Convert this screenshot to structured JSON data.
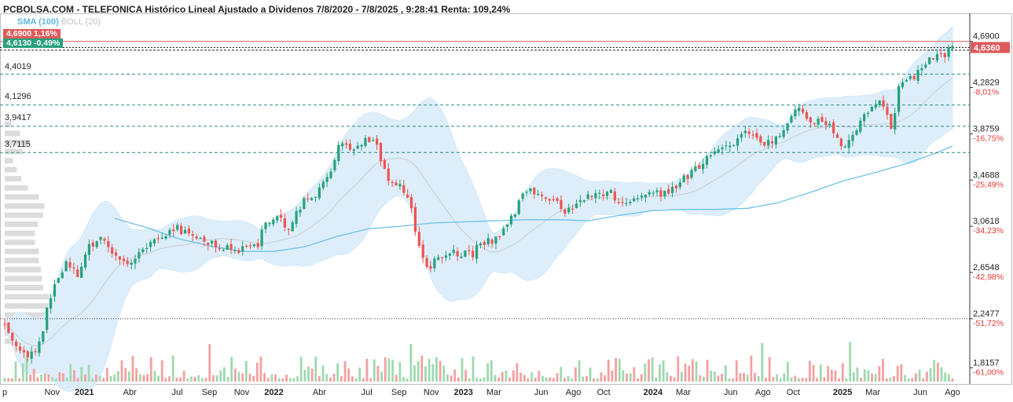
{
  "header": {
    "title": "PCBOLSA.COM - TELEFONICA Histórico Lineal Ajustado a Dividenos 7/8/2020 - 7/8/2025 , 9:28:41 Renta: 109,24%",
    "legend_sma": "SMA (100)",
    "legend_boll": "BOLL (20)"
  },
  "tags": {
    "high": "4,6900  1,16%",
    "low": "4,6130  -0,49%",
    "last": "4,6360"
  },
  "levels": [
    "4,4019",
    "4,1296",
    "3,9417",
    "3,7115"
  ],
  "colors": {
    "up": "#26a17b",
    "down": "#ef5350",
    "sma": "#6ec1e8",
    "band_fill": "#ddeefa",
    "band_mid": "#c9cdd1",
    "level_line": "#2c8a80",
    "support_line": "#333333",
    "high_line": "#e05a5a",
    "volume_profile": "#dcdcdc",
    "pct_text": "#e53935"
  },
  "chart_data": {
    "type": "candlestick",
    "title": "PCBOLSA.COM - TELEFONICA Histórico Lineal Ajustado a Dividenos 7/8/2020 - 7/8/2025 , 9:28:41 Renta: 109,24%",
    "x_ticks": [
      {
        "label": "p",
        "bold": false,
        "t": 0.0
      },
      {
        "label": "Nov",
        "bold": false,
        "t": 0.25
      },
      {
        "label": "2021",
        "bold": true,
        "t": 0.42
      },
      {
        "label": "Abr",
        "bold": false,
        "t": 0.66
      },
      {
        "label": "Jul",
        "bold": false,
        "t": 0.91
      },
      {
        "label": "Sep",
        "bold": false,
        "t": 1.08
      },
      {
        "label": "Nov",
        "bold": false,
        "t": 1.25
      },
      {
        "label": "2022",
        "bold": true,
        "t": 1.42
      },
      {
        "label": "Abr",
        "bold": false,
        "t": 1.66
      },
      {
        "label": "Jul",
        "bold": false,
        "t": 1.91
      },
      {
        "label": "Sep",
        "bold": false,
        "t": 2.08
      },
      {
        "label": "Nov",
        "bold": false,
        "t": 2.25
      },
      {
        "label": "2023",
        "bold": true,
        "t": 2.42
      },
      {
        "label": "Mar",
        "bold": false,
        "t": 2.58
      },
      {
        "label": "Jun",
        "bold": false,
        "t": 2.83
      },
      {
        "label": "Ago",
        "bold": false,
        "t": 3.0
      },
      {
        "label": "Oct",
        "bold": false,
        "t": 3.16
      },
      {
        "label": "2024",
        "bold": true,
        "t": 3.42
      },
      {
        "label": "Mar",
        "bold": false,
        "t": 3.58
      },
      {
        "label": "Jun",
        "bold": false,
        "t": 3.83
      },
      {
        "label": "Ago",
        "bold": false,
        "t": 4.0
      },
      {
        "label": "Oct",
        "bold": false,
        "t": 4.16
      },
      {
        "label": "2025",
        "bold": true,
        "t": 4.42
      },
      {
        "label": "Mar",
        "bold": false,
        "t": 4.58
      },
      {
        "label": "Jun",
        "bold": false,
        "t": 4.83
      },
      {
        "label": "Ago",
        "bold": false,
        "t": 5.0
      }
    ],
    "y_ticks": [
      {
        "value": 4.69,
        "label": "4,6900",
        "pct": ""
      },
      {
        "value": 4.2829,
        "label": "4,2829",
        "pct": "-8,01%"
      },
      {
        "value": 3.8759,
        "label": "3,8759",
        "pct": "-16,75%"
      },
      {
        "value": 3.4688,
        "label": "3,4688",
        "pct": "-25,49%"
      },
      {
        "value": 3.0618,
        "label": "3,0618",
        "pct": "-34,23%"
      },
      {
        "value": 2.6548,
        "label": "2,6548",
        "pct": "-42,98%"
      },
      {
        "value": 2.2477,
        "label": "2,2477",
        "pct": "-51,72%"
      },
      {
        "value": 1.8157,
        "label": "1,8157",
        "pct": "-61,00%"
      }
    ],
    "ylim": [
      1.68,
      4.93
    ],
    "reference_lines": {
      "high": 4.69,
      "low": 4.613,
      "last": 4.636,
      "levels": [
        4.4019,
        4.1296,
        3.9417,
        3.7115
      ],
      "support": 2.2477
    },
    "price_path": [
      [
        0.0,
        2.21
      ],
      [
        0.05,
        2.03
      ],
      [
        0.1,
        1.92
      ],
      [
        0.17,
        1.93
      ],
      [
        0.22,
        2.3
      ],
      [
        0.27,
        2.56
      ],
      [
        0.33,
        2.77
      ],
      [
        0.38,
        2.62
      ],
      [
        0.43,
        2.86
      ],
      [
        0.5,
        2.95
      ],
      [
        0.58,
        2.83
      ],
      [
        0.63,
        2.73
      ],
      [
        0.75,
        2.87
      ],
      [
        0.83,
        2.98
      ],
      [
        0.9,
        3.06
      ],
      [
        0.97,
        2.98
      ],
      [
        1.02,
        2.93
      ],
      [
        1.1,
        2.9
      ],
      [
        1.17,
        2.88
      ],
      [
        1.22,
        2.85
      ],
      [
        1.3,
        2.9
      ],
      [
        1.33,
        2.86
      ],
      [
        1.37,
        3.1
      ],
      [
        1.45,
        3.12
      ],
      [
        1.5,
        3.05
      ],
      [
        1.58,
        3.3
      ],
      [
        1.62,
        3.32
      ],
      [
        1.68,
        3.43
      ],
      [
        1.73,
        3.6
      ],
      [
        1.77,
        3.8
      ],
      [
        1.82,
        3.74
      ],
      [
        1.9,
        3.82
      ],
      [
        1.96,
        3.82
      ],
      [
        2.0,
        3.55
      ],
      [
        2.03,
        3.46
      ],
      [
        2.08,
        3.45
      ],
      [
        2.14,
        3.26
      ],
      [
        2.19,
        2.85
      ],
      [
        2.24,
        2.7
      ],
      [
        2.28,
        2.8
      ],
      [
        2.36,
        2.82
      ],
      [
        2.42,
        2.82
      ],
      [
        2.47,
        2.81
      ],
      [
        2.5,
        2.9
      ],
      [
        2.56,
        2.93
      ],
      [
        2.62,
        3.0
      ],
      [
        2.68,
        3.15
      ],
      [
        2.75,
        3.38
      ],
      [
        2.82,
        3.35
      ],
      [
        2.9,
        3.3
      ],
      [
        2.95,
        3.18
      ],
      [
        3.0,
        3.25
      ],
      [
        3.06,
        3.32
      ],
      [
        3.1,
        3.35
      ],
      [
        3.14,
        3.32
      ],
      [
        3.18,
        3.4
      ],
      [
        3.24,
        3.26
      ],
      [
        3.3,
        3.3
      ],
      [
        3.37,
        3.35
      ],
      [
        3.42,
        3.36
      ],
      [
        3.5,
        3.35
      ],
      [
        3.58,
        3.48
      ],
      [
        3.67,
        3.6
      ],
      [
        3.75,
        3.75
      ],
      [
        3.83,
        3.77
      ],
      [
        3.9,
        3.9
      ],
      [
        3.98,
        3.79
      ],
      [
        4.05,
        3.8
      ],
      [
        4.1,
        3.86
      ],
      [
        4.14,
        4.05
      ],
      [
        4.2,
        4.1
      ],
      [
        4.25,
        4.0
      ],
      [
        4.3,
        3.99
      ],
      [
        4.35,
        3.96
      ],
      [
        4.42,
        3.72
      ],
      [
        4.45,
        3.78
      ],
      [
        4.5,
        3.95
      ],
      [
        4.55,
        4.05
      ],
      [
        4.6,
        4.15
      ],
      [
        4.63,
        4.17
      ],
      [
        4.68,
        3.92
      ],
      [
        4.72,
        4.32
      ],
      [
        4.77,
        4.34
      ],
      [
        4.82,
        4.42
      ],
      [
        4.87,
        4.52
      ],
      [
        4.92,
        4.6
      ],
      [
        4.96,
        4.57
      ],
      [
        5.0,
        4.64
      ]
    ],
    "sma_100": [
      [
        0.58,
        3.13
      ],
      [
        0.75,
        3.05
      ],
      [
        0.92,
        2.95
      ],
      [
        1.08,
        2.89
      ],
      [
        1.25,
        2.84
      ],
      [
        1.42,
        2.84
      ],
      [
        1.58,
        2.88
      ],
      [
        1.75,
        2.97
      ],
      [
        1.92,
        3.04
      ],
      [
        2.08,
        3.06
      ],
      [
        2.25,
        3.09
      ],
      [
        2.42,
        3.1
      ],
      [
        2.58,
        3.11
      ],
      [
        2.75,
        3.12
      ],
      [
        2.92,
        3.12
      ],
      [
        3.08,
        3.11
      ],
      [
        3.25,
        3.16
      ],
      [
        3.42,
        3.2
      ],
      [
        3.58,
        3.21
      ],
      [
        3.75,
        3.21
      ],
      [
        3.92,
        3.22
      ],
      [
        4.08,
        3.27
      ],
      [
        4.25,
        3.36
      ],
      [
        4.42,
        3.46
      ],
      [
        4.58,
        3.53
      ],
      [
        4.75,
        3.61
      ],
      [
        4.92,
        3.71
      ],
      [
        5.0,
        3.77
      ]
    ],
    "volume_profile": [
      [
        2.05,
        0.5
      ],
      [
        2.12,
        0.85
      ],
      [
        2.2,
        1.0
      ],
      [
        2.28,
        0.95
      ],
      [
        2.36,
        0.9
      ],
      [
        2.44,
        0.82
      ],
      [
        2.52,
        0.7
      ],
      [
        2.6,
        0.68
      ],
      [
        2.68,
        0.66
      ],
      [
        2.76,
        0.62
      ],
      [
        2.84,
        0.62
      ],
      [
        2.92,
        0.55
      ],
      [
        3.0,
        0.55
      ],
      [
        3.08,
        0.6
      ],
      [
        3.16,
        0.7
      ],
      [
        3.24,
        0.72
      ],
      [
        3.32,
        0.62
      ],
      [
        3.4,
        0.42
      ],
      [
        3.48,
        0.3
      ],
      [
        3.56,
        0.22
      ],
      [
        3.64,
        0.15
      ],
      [
        3.72,
        0.32
      ],
      [
        3.8,
        0.45
      ],
      [
        3.88,
        0.28
      ],
      [
        3.96,
        0.12
      ]
    ]
  }
}
